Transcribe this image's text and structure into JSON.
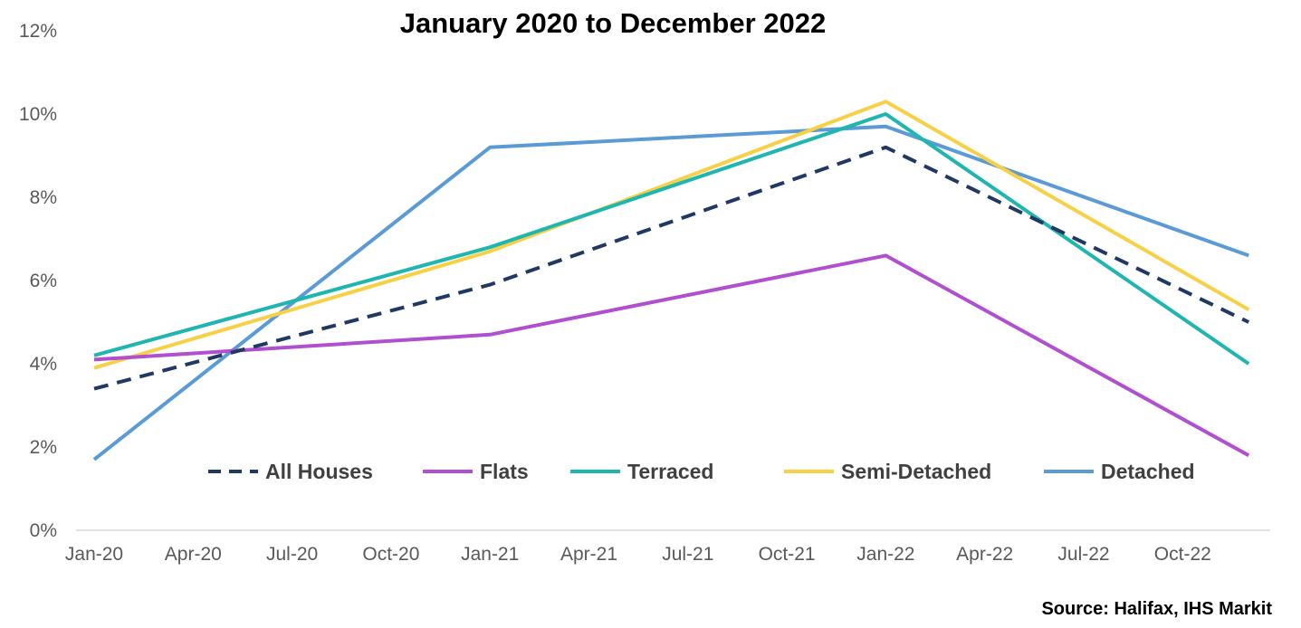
{
  "chart_data": {
    "type": "line",
    "title": "January 2020 to December 2022",
    "xlabel": "",
    "ylabel": "",
    "x_ticks": [
      "Jan-20",
      "Apr-20",
      "Jul-20",
      "Oct-20",
      "Jan-21",
      "Apr-21",
      "Jul-21",
      "Oct-21",
      "Jan-22",
      "Apr-22",
      "Jul-22",
      "Oct-22"
    ],
    "x_points": [
      "Jan-20",
      "Jan-21",
      "Jan-22",
      "Dec-22"
    ],
    "y_ticks": [
      "0%",
      "2%",
      "4%",
      "6%",
      "8%",
      "10%",
      "12%"
    ],
    "ylim": [
      0,
      12
    ],
    "grid": false,
    "legend_position": "bottom-inside",
    "series": [
      {
        "name": "All Houses",
        "values": [
          3.4,
          5.9,
          9.2,
          5.0
        ],
        "color": "#1f3864",
        "dash": true
      },
      {
        "name": "Flats",
        "values": [
          4.1,
          4.7,
          6.6,
          1.8
        ],
        "color": "#b04fd0",
        "dash": false
      },
      {
        "name": "Terraced",
        "values": [
          4.2,
          6.8,
          10.0,
          4.0
        ],
        "color": "#1fb5b0",
        "dash": false
      },
      {
        "name": "Semi-Detached",
        "values": [
          3.9,
          6.7,
          10.3,
          5.3
        ],
        "color": "#f7d046",
        "dash": false
      },
      {
        "name": "Detached",
        "values": [
          1.7,
          9.2,
          9.7,
          6.6
        ],
        "color": "#5b9bd5",
        "dash": false
      }
    ]
  },
  "source": "Source: Halifax, IHS Markit"
}
